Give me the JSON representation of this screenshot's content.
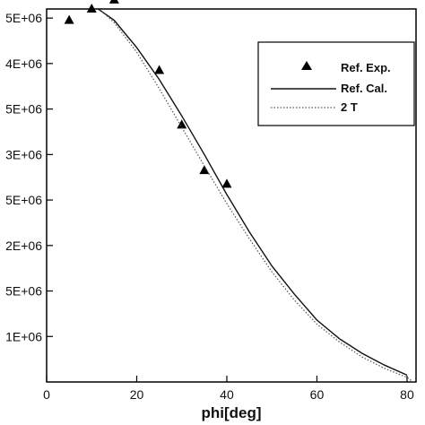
{
  "chart_data": {
    "type": "line",
    "title": "",
    "xlabel": "phi[deg]",
    "ylabel": "",
    "xlim": [
      0,
      82
    ],
    "ylim": [
      0,
      8.2
    ],
    "x_ticks": [
      0,
      20,
      40,
      60,
      80
    ],
    "y_ticks": [
      {
        "value": 1,
        "label": "1E+06"
      },
      {
        "value": 2,
        "label": "5E+06"
      },
      {
        "value": 3,
        "label": "2E+06"
      },
      {
        "value": 4,
        "label": "5E+06"
      },
      {
        "value": 5,
        "label": "3E+06"
      },
      {
        "value": 6,
        "label": "5E+06"
      },
      {
        "value": 7,
        "label": "4E+06"
      },
      {
        "value": 8,
        "label": "5E+06"
      }
    ],
    "grid": false,
    "legend_position": "top-right",
    "series": [
      {
        "name": "Ref. Exp.",
        "style": "markers",
        "marker": "triangle",
        "color": "#000000",
        "x": [
          5,
          10,
          15,
          25,
          30,
          35,
          40
        ],
        "y": [
          7.95,
          8.2,
          8.4,
          6.85,
          5.65,
          4.65,
          4.35
        ]
      },
      {
        "name": "Ref. Cal.",
        "style": "solid",
        "color": "#111111",
        "x": [
          0,
          5,
          10,
          15,
          20,
          25,
          30,
          35,
          40,
          45,
          50,
          55,
          60,
          65,
          70,
          75,
          80
        ],
        "y": [
          8.55,
          8.48,
          8.3,
          7.95,
          7.35,
          6.65,
          5.85,
          5.0,
          4.12,
          3.3,
          2.55,
          1.93,
          1.36,
          0.95,
          0.63,
          0.37,
          0.15
        ]
      },
      {
        "name": "2 T",
        "style": "dotted",
        "color": "#555555",
        "x": [
          0,
          5,
          10,
          15,
          20,
          25,
          30,
          35,
          40,
          45,
          50,
          55,
          60,
          65,
          70,
          75,
          80,
          82
        ],
        "y": [
          8.72,
          8.62,
          8.35,
          7.9,
          7.25,
          6.45,
          5.6,
          4.75,
          3.92,
          3.15,
          2.42,
          1.8,
          1.27,
          0.88,
          0.55,
          0.3,
          0.1,
          -0.05
        ]
      }
    ]
  }
}
